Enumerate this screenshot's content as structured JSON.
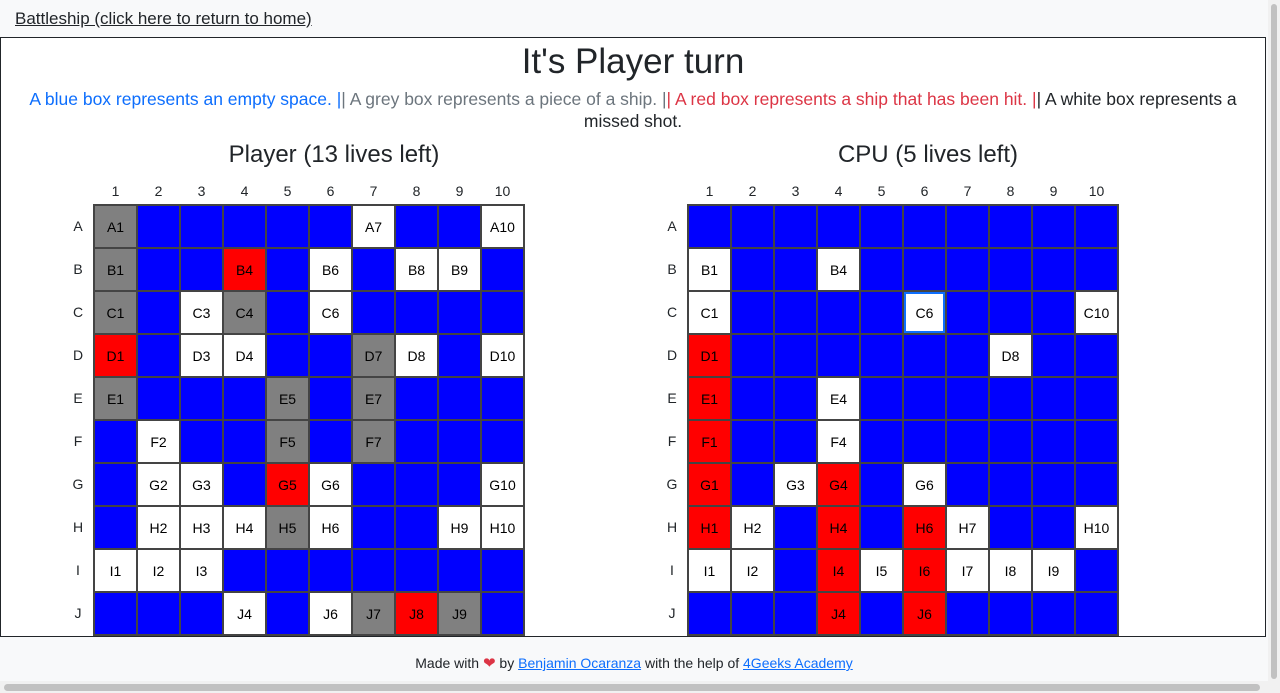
{
  "nav": {
    "home_link": "Battleship (click here to return to home)"
  },
  "turn_title": "It's Player turn",
  "legend": {
    "blue": "A blue box represents an empty space. |",
    "grey": "| A grey box represents a piece of a ship. |",
    "red": "| A red box represents a ship that has been hit. |",
    "white": "| A white box represents a missed shot."
  },
  "columns": [
    "1",
    "2",
    "3",
    "4",
    "5",
    "6",
    "7",
    "8",
    "9",
    "10"
  ],
  "rows": [
    "A",
    "B",
    "C",
    "D",
    "E",
    "F",
    "G",
    "H",
    "I",
    "J"
  ],
  "colors": {
    "empty": "#0000ff",
    "ship": "#808080",
    "hit": "#ff0000",
    "miss": "#ffffff"
  },
  "boards": [
    {
      "title": "Player (13 lives left)",
      "grid": [
        [
          "S",
          "E",
          "E",
          "E",
          "E",
          "E",
          "M",
          "E",
          "E",
          "M"
        ],
        [
          "S",
          "E",
          "E",
          "H",
          "E",
          "M",
          "E",
          "M",
          "M",
          "E"
        ],
        [
          "S",
          "E",
          "M",
          "S",
          "E",
          "M",
          "E",
          "E",
          "E",
          "E"
        ],
        [
          "H",
          "E",
          "M",
          "M",
          "E",
          "E",
          "S",
          "M",
          "E",
          "M"
        ],
        [
          "S",
          "E",
          "E",
          "E",
          "S",
          "E",
          "S",
          "E",
          "E",
          "E"
        ],
        [
          "E",
          "M",
          "E",
          "E",
          "S",
          "E",
          "S",
          "E",
          "E",
          "E"
        ],
        [
          "E",
          "M",
          "M",
          "E",
          "H",
          "M",
          "E",
          "E",
          "E",
          "M"
        ],
        [
          "E",
          "M",
          "M",
          "M",
          "S",
          "M",
          "E",
          "E",
          "M",
          "M"
        ],
        [
          "M",
          "M",
          "M",
          "E",
          "E",
          "E",
          "E",
          "E",
          "E",
          "E"
        ],
        [
          "E",
          "E",
          "E",
          "M",
          "E",
          "M",
          "S",
          "H",
          "S",
          "E"
        ]
      ],
      "labels": [
        [
          "A1",
          "",
          "",
          "",
          "",
          "",
          "A7",
          "",
          "",
          "A10"
        ],
        [
          "B1",
          "",
          "",
          "B4",
          "",
          "B6",
          "",
          "B8",
          "B9",
          ""
        ],
        [
          "C1",
          "",
          "C3",
          "C4",
          "",
          "C6",
          "",
          "",
          "",
          ""
        ],
        [
          "D1",
          "",
          "D3",
          "D4",
          "",
          "",
          "D7",
          "D8",
          "",
          "D10"
        ],
        [
          "E1",
          "",
          "",
          "",
          "E5",
          "",
          "E7",
          "",
          "",
          ""
        ],
        [
          "",
          "F2",
          "",
          "",
          "F5",
          "",
          "F7",
          "",
          "",
          ""
        ],
        [
          "",
          "G2",
          "G3",
          "",
          "G5",
          "G6",
          "",
          "",
          "",
          "G10"
        ],
        [
          "",
          "H2",
          "H3",
          "H4",
          "H5",
          "H6",
          "",
          "",
          "H9",
          "H10"
        ],
        [
          "I1",
          "I2",
          "I3",
          "",
          "",
          "",
          "",
          "",
          "",
          ""
        ],
        [
          "",
          "",
          "",
          "J4",
          "",
          "J6",
          "J7",
          "J8",
          "J9",
          ""
        ]
      ]
    },
    {
      "title": "CPU (5 lives left)",
      "grid": [
        [
          "E",
          "E",
          "E",
          "E",
          "E",
          "E",
          "E",
          "E",
          "E",
          "E"
        ],
        [
          "M",
          "E",
          "E",
          "M",
          "E",
          "E",
          "E",
          "E",
          "E",
          "E"
        ],
        [
          "M",
          "E",
          "E",
          "E",
          "E",
          "M",
          "E",
          "E",
          "E",
          "M"
        ],
        [
          "H",
          "E",
          "E",
          "E",
          "E",
          "E",
          "E",
          "M",
          "E",
          "E"
        ],
        [
          "H",
          "E",
          "E",
          "M",
          "E",
          "E",
          "E",
          "E",
          "E",
          "E"
        ],
        [
          "H",
          "E",
          "E",
          "M",
          "E",
          "E",
          "E",
          "E",
          "E",
          "E"
        ],
        [
          "H",
          "E",
          "M",
          "H",
          "E",
          "M",
          "E",
          "E",
          "E",
          "E"
        ],
        [
          "H",
          "M",
          "E",
          "H",
          "E",
          "H",
          "M",
          "E",
          "E",
          "M"
        ],
        [
          "M",
          "M",
          "E",
          "H",
          "M",
          "H",
          "M",
          "M",
          "M",
          "E"
        ],
        [
          "E",
          "E",
          "E",
          "H",
          "E",
          "H",
          "E",
          "E",
          "E",
          "E"
        ]
      ],
      "labels": [
        [
          "",
          "",
          "",
          "",
          "",
          "",
          "",
          "",
          "",
          ""
        ],
        [
          "B1",
          "",
          "",
          "B4",
          "",
          "",
          "",
          "",
          "",
          ""
        ],
        [
          "C1",
          "",
          "",
          "",
          "",
          "C6",
          "",
          "",
          "",
          "C10"
        ],
        [
          "D1",
          "",
          "",
          "",
          "",
          "",
          "",
          "D8",
          "",
          ""
        ],
        [
          "E1",
          "",
          "",
          "E4",
          "",
          "",
          "",
          "",
          "",
          ""
        ],
        [
          "F1",
          "",
          "",
          "F4",
          "",
          "",
          "",
          "",
          "",
          ""
        ],
        [
          "G1",
          "",
          "G3",
          "G4",
          "",
          "G6",
          "",
          "",
          "",
          ""
        ],
        [
          "H1",
          "H2",
          "",
          "H4",
          "",
          "H6",
          "H7",
          "",
          "",
          "H10"
        ],
        [
          "I1",
          "I2",
          "",
          "I4",
          "I5",
          "I6",
          "I7",
          "I8",
          "I9",
          ""
        ],
        [
          "",
          "",
          "",
          "J4",
          "",
          "J6",
          "",
          "",
          "",
          ""
        ]
      ]
    }
  ],
  "footer": {
    "prefix": "Made with",
    "by": "by",
    "author": "Benjamin Ocaranza",
    "help": "with the help of",
    "org": "4Geeks Academy"
  }
}
